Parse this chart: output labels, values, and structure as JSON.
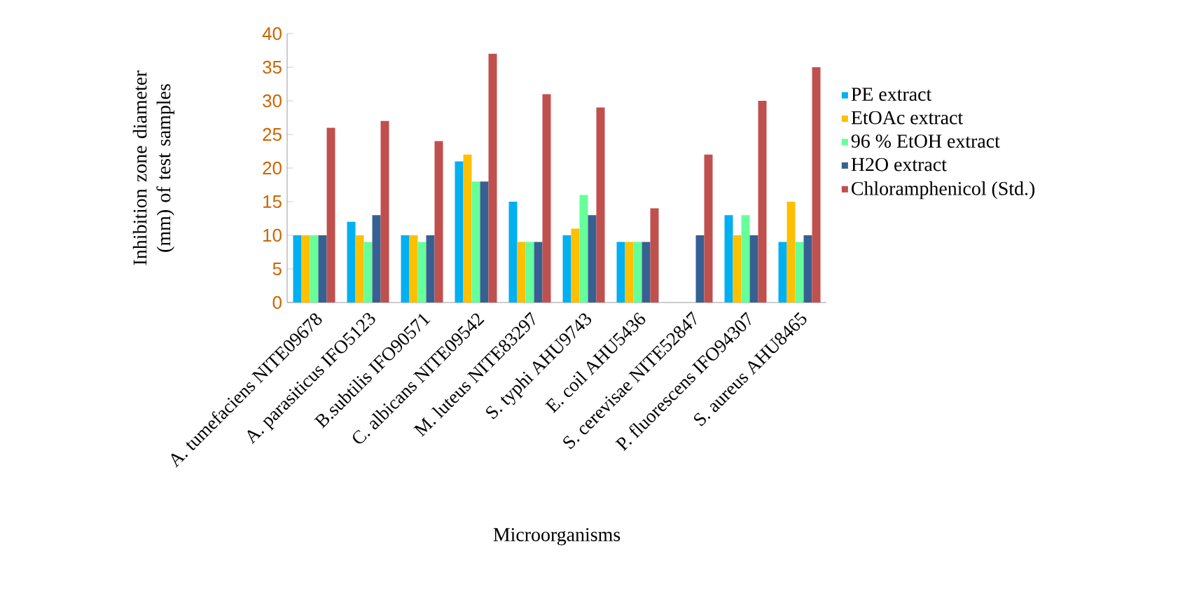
{
  "chart_data": {
    "type": "bar",
    "xlabel": "Microorganisms",
    "ylabel": "Inhibition zone diameter (mm) of test samples",
    "categories": [
      "A. tumefaciens NITE09678",
      "A. parasiticus IFO5123",
      "B.subtilis IFO90571",
      "C. albicans NITE09542",
      "M. luteus NITE83297",
      "S. typhi AHU9743",
      "E. coil AHU5436",
      "S. cerevisae NITE52847",
      "P. fluorescens IFO94307",
      "S. aureus AHU8465"
    ],
    "series": [
      {
        "name": "PE extract",
        "color": "#00b0f0",
        "values": [
          10,
          12,
          10,
          21,
          15,
          10,
          9,
          null,
          13,
          9
        ]
      },
      {
        "name": "EtOAc extract",
        "color": "#ffc000",
        "values": [
          10,
          10,
          10,
          22,
          9,
          11,
          9,
          null,
          10,
          15
        ]
      },
      {
        "name": "96 % EtOH extract",
        "color": "#66ff99",
        "values": [
          10,
          9,
          9,
          18,
          9,
          16,
          9,
          null,
          13,
          9
        ]
      },
      {
        "name": "H2O extract",
        "color": "#376092",
        "values": [
          10,
          13,
          10,
          18,
          9,
          13,
          9,
          10,
          10,
          10
        ]
      },
      {
        "name": "Chloramphenicol (Std.)",
        "color": "#c0504d",
        "values": [
          26,
          27,
          24,
          37,
          31,
          29,
          14,
          22,
          30,
          35
        ]
      }
    ],
    "ylim": [
      0,
      40
    ],
    "yticks": [
      0,
      5,
      10,
      15,
      20,
      25,
      30,
      35,
      40
    ],
    "legend": "right"
  }
}
